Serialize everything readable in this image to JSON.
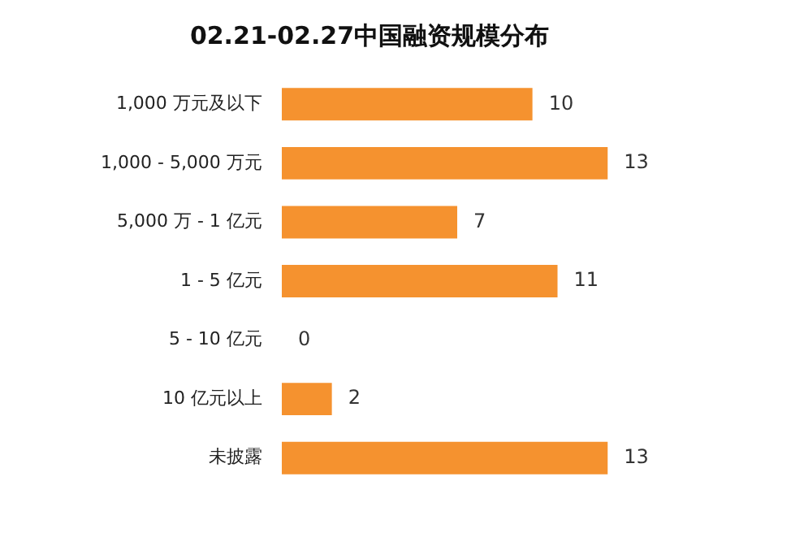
{
  "chart_data": {
    "type": "bar",
    "orientation": "horizontal",
    "title": "02.21-02.27中国融资规模分布",
    "categories": [
      "1,000 万元及以下",
      "1,000 - 5,000 万元",
      "5,000 万 - 1 亿元",
      "1 - 5 亿元",
      "5 - 10 亿元",
      "10 亿元以上",
      "未披露"
    ],
    "values": [
      10,
      13,
      7,
      11,
      0,
      2,
      13
    ],
    "color": "#f5922f",
    "data_labels": true
  }
}
